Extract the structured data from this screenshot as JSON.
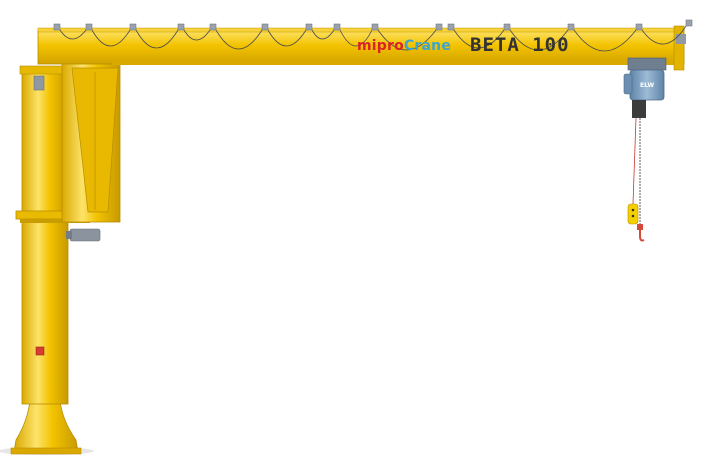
{
  "branding": {
    "brand_part1": "mipro",
    "brand_part2": "Crane",
    "model": "BETA 100",
    "hoist_badge": "ELW"
  },
  "colors": {
    "crane_yellow": "#f3c300",
    "crane_shadow": "#d9a900",
    "crane_highlight": "#fde36a",
    "hoist_blue": "#7fa2c4",
    "brand_red": "#d8232a",
    "brand_blue": "#3aa6cf",
    "model_text": "#333333",
    "pendant_yellow": "#f4d000"
  },
  "icons": [
    "jib-crane",
    "electric-chain-hoist",
    "festoon-cable",
    "pendant-control",
    "crane-hook"
  ]
}
